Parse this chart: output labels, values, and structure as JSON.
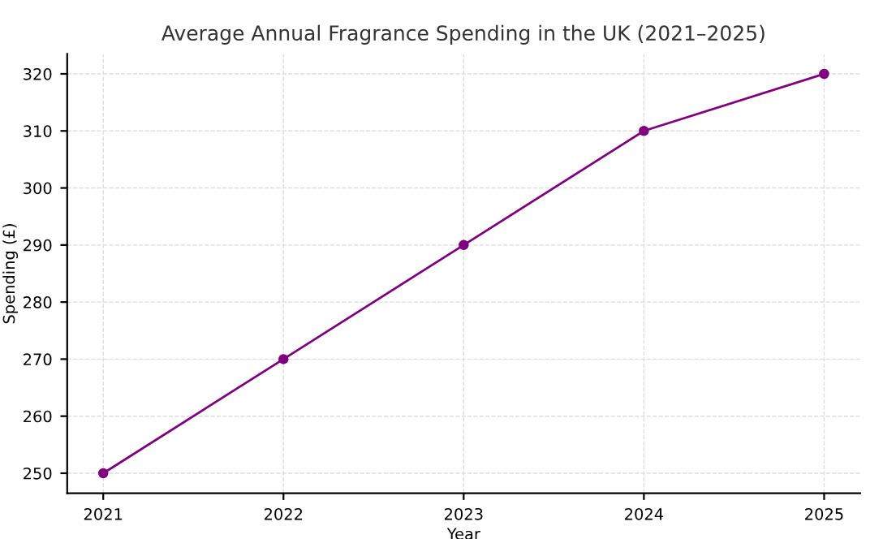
{
  "chart_data": {
    "type": "line",
    "title": "Average Annual Fragrance Spending in the UK (2021–2025)",
    "xlabel": "Year",
    "ylabel": "Spending (£)",
    "x": [
      2021,
      2022,
      2023,
      2024,
      2025
    ],
    "series": [
      {
        "color": "#800080",
        "values": [
          250,
          270,
          290,
          310,
          320
        ]
      }
    ],
    "xlim": [
      2020.8,
      2025.2
    ],
    "xticks": [
      2021,
      2022,
      2023,
      2024,
      2025
    ],
    "ylim": [
      246.5,
      323.5
    ],
    "yticks": [
      250,
      260,
      270,
      280,
      290,
      300,
      310,
      320
    ],
    "grid": true,
    "marker": "circle",
    "line_style": "solid"
  }
}
